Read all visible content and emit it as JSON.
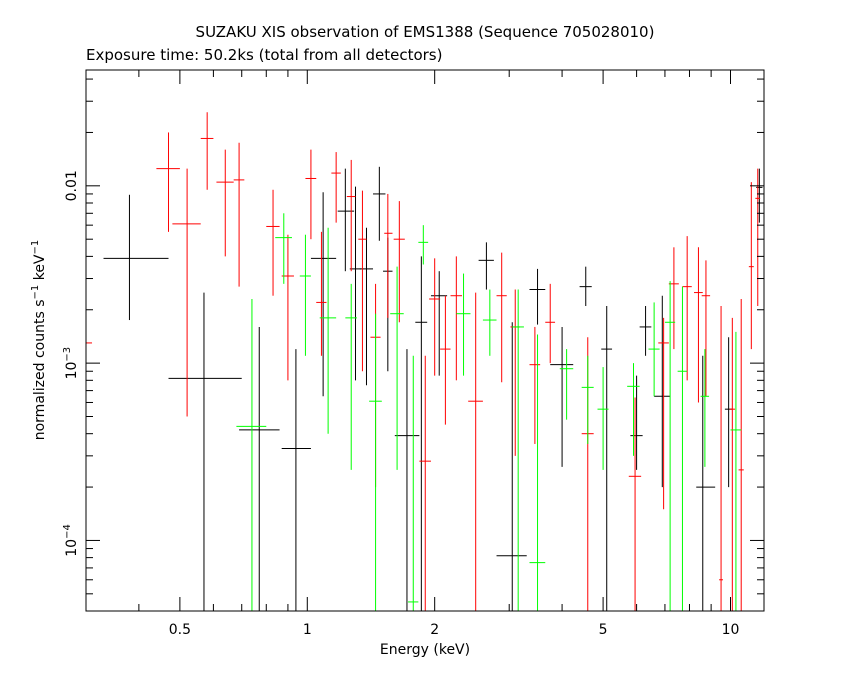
{
  "chart_data": {
    "type": "scatter",
    "title": "SUZAKU XIS observation of EMS1388 (Sequence 705028010)",
    "subtitle": "Exposure time: 50.2ks (total from all detectors)",
    "xlabel": "Energy (keV)",
    "ylabel": {
      "base": "normalized counts s",
      "sup1": "−1",
      "mid": " keV",
      "sup2": "−1"
    },
    "x_scale": "log",
    "y_scale": "log",
    "xlim": [
      0.3,
      12.0
    ],
    "ylim": [
      4e-05,
      0.045
    ],
    "x_ticks": [
      {
        "value": 0.5,
        "label": "0.5"
      },
      {
        "value": 1,
        "label": "1"
      },
      {
        "value": 2,
        "label": "2"
      },
      {
        "value": 5,
        "label": "5"
      },
      {
        "value": 10,
        "label": "10"
      }
    ],
    "y_ticks": [
      {
        "value": 0.0001,
        "base": "10",
        "exp": "−4"
      },
      {
        "value": 0.001,
        "base": "10",
        "exp": "−3"
      },
      {
        "value": 0.01,
        "base": "0.01",
        "exp": ""
      }
    ],
    "series": [
      {
        "color": "#000000",
        "points": [
          {
            "x": 0.38,
            "xlo": 0.33,
            "xhi": 0.47,
            "y": 0.0039,
            "ylo": 0.00175,
            "yhi": 0.0089
          },
          {
            "x": 0.57,
            "xlo": 0.47,
            "xhi": 0.7,
            "y": 0.00082,
            "ylo": 4e-05,
            "yhi": 0.0025
          },
          {
            "x": 0.77,
            "xlo": 0.69,
            "xhi": 0.86,
            "y": 0.00042,
            "ylo": 4e-05,
            "yhi": 0.0016
          },
          {
            "x": 0.94,
            "xlo": 0.87,
            "xhi": 1.02,
            "y": 0.00033,
            "ylo": 4e-05,
            "yhi": 0.0012
          },
          {
            "x": 1.09,
            "xlo": 1.02,
            "xhi": 1.17,
            "y": 0.0039,
            "ylo": 0.00065,
            "yhi": 0.0092
          },
          {
            "x": 1.23,
            "xlo": 1.18,
            "xhi": 1.29,
            "y": 0.0072,
            "ylo": 0.0033,
            "yhi": 0.0125
          },
          {
            "x": 1.3,
            "xlo": 1.26,
            "xhi": 1.34,
            "y": 0.0034,
            "ylo": 0.0008,
            "yhi": 0.0099
          },
          {
            "x": 1.38,
            "xlo": 1.33,
            "xhi": 1.43,
            "y": 0.0034,
            "ylo": 0.00075,
            "yhi": 0.0058
          },
          {
            "x": 1.48,
            "xlo": 1.43,
            "xhi": 1.53,
            "y": 0.009,
            "ylo": 0.0049,
            "yhi": 0.0128
          },
          {
            "x": 1.55,
            "xlo": 1.51,
            "xhi": 1.59,
            "y": 0.0033,
            "ylo": 0.0009,
            "yhi": 0.0051
          },
          {
            "x": 1.72,
            "xlo": 1.61,
            "xhi": 1.84,
            "y": 0.00039,
            "ylo": 4e-05,
            "yhi": 0.0012
          },
          {
            "x": 1.86,
            "xlo": 1.8,
            "xhi": 1.92,
            "y": 0.0017,
            "ylo": 4e-05,
            "yhi": 0.004
          },
          {
            "x": 2.05,
            "xlo": 1.96,
            "xhi": 2.14,
            "y": 0.0024,
            "ylo": 0.00085,
            "yhi": 0.0033
          },
          {
            "x": 2.65,
            "xlo": 2.54,
            "xhi": 2.76,
            "y": 0.0038,
            "ylo": 0.0026,
            "yhi": 0.0048
          },
          {
            "x": 3.05,
            "xlo": 2.8,
            "xhi": 3.3,
            "y": 8.2e-05,
            "ylo": 4e-05,
            "yhi": 0.0017
          },
          {
            "x": 3.5,
            "xlo": 3.35,
            "xhi": 3.65,
            "y": 0.0026,
            "ylo": 0.00165,
            "yhi": 0.0034
          },
          {
            "x": 4.0,
            "xlo": 3.75,
            "xhi": 4.25,
            "y": 0.00098,
            "ylo": 0.00026,
            "yhi": 0.0016
          },
          {
            "x": 4.55,
            "xlo": 4.4,
            "xhi": 4.7,
            "y": 0.0027,
            "ylo": 0.0021,
            "yhi": 0.0035
          },
          {
            "x": 5.1,
            "xlo": 4.95,
            "xhi": 5.25,
            "y": 0.0012,
            "ylo": 4e-05,
            "yhi": 0.0021
          },
          {
            "x": 6.0,
            "xlo": 5.8,
            "xhi": 6.2,
            "y": 0.00039,
            "ylo": 0.00025,
            "yhi": 0.00085
          },
          {
            "x": 6.3,
            "xlo": 6.1,
            "xhi": 6.5,
            "y": 0.0016,
            "ylo": 0.0011,
            "yhi": 0.0021
          },
          {
            "x": 6.9,
            "xlo": 6.6,
            "xhi": 7.2,
            "y": 0.00065,
            "ylo": 0.0002,
            "yhi": 0.0024
          },
          {
            "x": 8.6,
            "xlo": 8.3,
            "xhi": 9.2,
            "y": 0.0002,
            "ylo": 4e-05,
            "yhi": 0.0011
          },
          {
            "x": 9.9,
            "xlo": 9.7,
            "xhi": 10.1,
            "y": 0.00055,
            "ylo": 0.0002,
            "yhi": 0.0014
          },
          {
            "x": 11.7,
            "xlo": 11.5,
            "xhi": 11.9,
            "y": 0.0098,
            "ylo": 0.0062,
            "yhi": 0.0125
          }
        ]
      },
      {
        "color": "#ff0000",
        "points": [
          {
            "x": 0.3,
            "xlo": 0.3,
            "xhi": 0.31,
            "y": 0.0013,
            "ylo": 0.0013,
            "yhi": 0.045
          },
          {
            "x": 0.47,
            "xlo": 0.44,
            "xhi": 0.5,
            "y": 0.0125,
            "ylo": 0.0055,
            "yhi": 0.02
          },
          {
            "x": 0.52,
            "xlo": 0.48,
            "xhi": 0.56,
            "y": 0.0061,
            "ylo": 0.0005,
            "yhi": 0.0125
          },
          {
            "x": 0.58,
            "xlo": 0.56,
            "xhi": 0.6,
            "y": 0.0185,
            "ylo": 0.0095,
            "yhi": 0.026
          },
          {
            "x": 0.64,
            "xlo": 0.61,
            "xhi": 0.67,
            "y": 0.0105,
            "ylo": 0.004,
            "yhi": 0.016
          },
          {
            "x": 0.69,
            "xlo": 0.67,
            "xhi": 0.71,
            "y": 0.0108,
            "ylo": 0.0027,
            "yhi": 0.0175
          },
          {
            "x": 0.83,
            "xlo": 0.8,
            "xhi": 0.86,
            "y": 0.0059,
            "ylo": 0.0024,
            "yhi": 0.0095
          },
          {
            "x": 0.9,
            "xlo": 0.87,
            "xhi": 0.93,
            "y": 0.0031,
            "ylo": 0.0008,
            "yhi": 0.0053
          },
          {
            "x": 1.02,
            "xlo": 0.99,
            "xhi": 1.05,
            "y": 0.011,
            "ylo": 0.005,
            "yhi": 0.016
          },
          {
            "x": 1.08,
            "xlo": 1.05,
            "xhi": 1.11,
            "y": 0.0022,
            "ylo": 0.0011,
            "yhi": 0.0055
          },
          {
            "x": 1.17,
            "xlo": 1.14,
            "xhi": 1.2,
            "y": 0.0118,
            "ylo": 0.0062,
            "yhi": 0.0155
          },
          {
            "x": 1.27,
            "xlo": 1.24,
            "xhi": 1.3,
            "y": 0.0087,
            "ylo": 0.0033,
            "yhi": 0.014
          },
          {
            "x": 1.35,
            "xlo": 1.32,
            "xhi": 1.38,
            "y": 0.005,
            "ylo": 0.0009,
            "yhi": 0.0094
          },
          {
            "x": 1.45,
            "xlo": 1.41,
            "xhi": 1.49,
            "y": 0.0014,
            "ylo": 0.0002,
            "yhi": 0.0028
          },
          {
            "x": 1.55,
            "xlo": 1.52,
            "xhi": 1.59,
            "y": 0.0054,
            "ylo": 0.0018,
            "yhi": 0.009
          },
          {
            "x": 1.65,
            "xlo": 1.6,
            "xhi": 1.7,
            "y": 0.005,
            "ylo": 0.0017,
            "yhi": 0.0082
          },
          {
            "x": 1.9,
            "xlo": 1.84,
            "xhi": 1.96,
            "y": 0.00028,
            "ylo": 4e-05,
            "yhi": 0.0011
          },
          {
            "x": 2.0,
            "xlo": 1.94,
            "xhi": 2.06,
            "y": 0.0023,
            "ylo": 0.00085,
            "yhi": 0.0039
          },
          {
            "x": 2.12,
            "xlo": 2.06,
            "xhi": 2.18,
            "y": 0.0012,
            "ylo": 0.00045,
            "yhi": 0.0024
          },
          {
            "x": 2.25,
            "xlo": 2.18,
            "xhi": 2.32,
            "y": 0.0024,
            "ylo": 0.0008,
            "yhi": 0.004
          },
          {
            "x": 2.5,
            "xlo": 2.4,
            "xhi": 2.6,
            "y": 0.00061,
            "ylo": 4e-05,
            "yhi": 0.0025
          },
          {
            "x": 2.88,
            "xlo": 2.8,
            "xhi": 2.96,
            "y": 0.0024,
            "ylo": 0.00078,
            "yhi": 0.0042
          },
          {
            "x": 3.1,
            "xlo": 3.02,
            "xhi": 3.18,
            "y": 0.0016,
            "ylo": 0.0003,
            "yhi": 0.0026
          },
          {
            "x": 3.45,
            "xlo": 3.35,
            "xhi": 3.55,
            "y": 0.00098,
            "ylo": 0.00035,
            "yhi": 0.0016
          },
          {
            "x": 3.75,
            "xlo": 3.65,
            "xhi": 3.85,
            "y": 0.0017,
            "ylo": 0.001,
            "yhi": 0.0028
          },
          {
            "x": 4.6,
            "xlo": 4.45,
            "xhi": 4.75,
            "y": 0.0004,
            "ylo": 4e-05,
            "yhi": 0.0014
          },
          {
            "x": 5.95,
            "xlo": 5.75,
            "xhi": 6.15,
            "y": 0.00023,
            "ylo": 4e-05,
            "yhi": 0.00064
          },
          {
            "x": 6.95,
            "xlo": 6.75,
            "xhi": 7.15,
            "y": 0.0013,
            "ylo": 0.00015,
            "yhi": 0.0018
          },
          {
            "x": 7.35,
            "xlo": 7.15,
            "xhi": 7.55,
            "y": 0.0028,
            "ylo": 0.0012,
            "yhi": 0.0045
          },
          {
            "x": 7.9,
            "xlo": 7.7,
            "xhi": 8.1,
            "y": 0.0027,
            "ylo": 0.0008,
            "yhi": 0.0052
          },
          {
            "x": 8.4,
            "xlo": 8.2,
            "xhi": 8.6,
            "y": 0.0025,
            "ylo": 0.0006,
            "yhi": 0.0045
          },
          {
            "x": 8.75,
            "xlo": 8.55,
            "xhi": 8.95,
            "y": 0.0024,
            "ylo": 0.00065,
            "yhi": 0.0038
          },
          {
            "x": 9.5,
            "xlo": 9.4,
            "xhi": 9.6,
            "y": 6e-05,
            "ylo": 4e-05,
            "yhi": 0.0021
          },
          {
            "x": 10.1,
            "xlo": 9.95,
            "xhi": 10.25,
            "y": 0.00055,
            "ylo": 4e-05,
            "yhi": 0.0018
          },
          {
            "x": 10.6,
            "xlo": 10.45,
            "xhi": 10.75,
            "y": 0.00025,
            "ylo": 4e-05,
            "yhi": 0.0023
          },
          {
            "x": 11.2,
            "xlo": 11.05,
            "xhi": 11.35,
            "y": 0.0035,
            "ylo": 0.0012,
            "yhi": 0.0105
          },
          {
            "x": 11.6,
            "xlo": 11.45,
            "xhi": 11.75,
            "y": 0.0085,
            "ylo": 0.0021,
            "yhi": 0.0125
          }
        ]
      },
      {
        "color": "#00ff00",
        "points": [
          {
            "x": 0.74,
            "xlo": 0.68,
            "xhi": 0.8,
            "y": 0.00044,
            "ylo": 4e-05,
            "yhi": 0.0023
          },
          {
            "x": 0.88,
            "xlo": 0.84,
            "xhi": 0.92,
            "y": 0.0051,
            "ylo": 0.0028,
            "yhi": 0.007
          },
          {
            "x": 0.99,
            "xlo": 0.96,
            "xhi": 1.02,
            "y": 0.0031,
            "ylo": 0.0011,
            "yhi": 0.0053
          },
          {
            "x": 1.12,
            "xlo": 1.07,
            "xhi": 1.17,
            "y": 0.0018,
            "ylo": 0.0004,
            "yhi": 0.0058
          },
          {
            "x": 1.27,
            "xlo": 1.23,
            "xhi": 1.31,
            "y": 0.0018,
            "ylo": 0.00025,
            "yhi": 0.0028
          },
          {
            "x": 1.45,
            "xlo": 1.4,
            "xhi": 1.5,
            "y": 0.00061,
            "ylo": 4e-05,
            "yhi": 0.0019
          },
          {
            "x": 1.63,
            "xlo": 1.57,
            "xhi": 1.69,
            "y": 0.0019,
            "ylo": 0.00025,
            "yhi": 0.0035
          },
          {
            "x": 1.78,
            "xlo": 1.73,
            "xhi": 1.83,
            "y": 4.5e-05,
            "ylo": 4e-05,
            "yhi": 0.0011
          },
          {
            "x": 1.88,
            "xlo": 1.83,
            "xhi": 1.93,
            "y": 0.0048,
            "ylo": 0.0036,
            "yhi": 0.006
          },
          {
            "x": 2.34,
            "xlo": 2.25,
            "xhi": 2.43,
            "y": 0.0019,
            "ylo": 0.00085,
            "yhi": 0.0032
          },
          {
            "x": 2.7,
            "xlo": 2.6,
            "xhi": 2.8,
            "y": 0.00175,
            "ylo": 0.0011,
            "yhi": 0.0026
          },
          {
            "x": 3.15,
            "xlo": 3.05,
            "xhi": 3.25,
            "y": 0.0016,
            "ylo": 4e-05,
            "yhi": 0.0026
          },
          {
            "x": 3.5,
            "xlo": 3.35,
            "xhi": 3.65,
            "y": 7.5e-05,
            "ylo": 4e-05,
            "yhi": 0.00145
          },
          {
            "x": 4.1,
            "xlo": 3.95,
            "xhi": 4.25,
            "y": 0.00093,
            "ylo": 0.00048,
            "yhi": 0.0012
          },
          {
            "x": 4.6,
            "xlo": 4.45,
            "xhi": 4.75,
            "y": 0.00073,
            "ylo": 0.00035,
            "yhi": 0.0011
          },
          {
            "x": 5.0,
            "xlo": 4.85,
            "xhi": 5.15,
            "y": 0.00055,
            "ylo": 0.00025,
            "yhi": 0.00095
          },
          {
            "x": 5.9,
            "xlo": 5.7,
            "xhi": 6.1,
            "y": 0.00074,
            "ylo": 0.0003,
            "yhi": 0.001
          },
          {
            "x": 6.6,
            "xlo": 6.4,
            "xhi": 6.8,
            "y": 0.0012,
            "ylo": 0.00065,
            "yhi": 0.0022
          },
          {
            "x": 7.2,
            "xlo": 7.0,
            "xhi": 7.4,
            "y": 0.0017,
            "ylo": 4e-05,
            "yhi": 0.0029
          },
          {
            "x": 7.7,
            "xlo": 7.5,
            "xhi": 7.9,
            "y": 0.0009,
            "ylo": 4e-05,
            "yhi": 0.0027
          },
          {
            "x": 8.7,
            "xlo": 8.5,
            "xhi": 8.9,
            "y": 0.00065,
            "ylo": 0.00026,
            "yhi": 0.0012
          },
          {
            "x": 10.3,
            "xlo": 10.0,
            "xhi": 10.6,
            "y": 0.00042,
            "ylo": 4e-05,
            "yhi": 0.0015
          }
        ]
      }
    ]
  }
}
